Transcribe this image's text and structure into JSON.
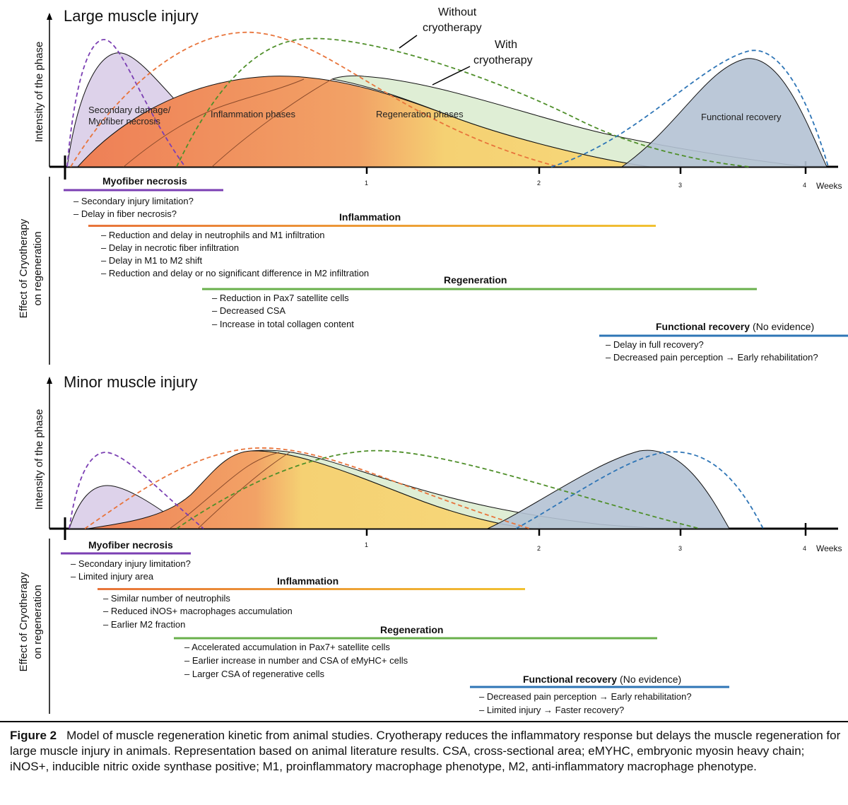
{
  "top": {
    "title": "Large muscle injury",
    "y_axis_label": "Intensity of the phase",
    "effect_label_line1": "Effect of  Cryotherapy",
    "effect_label_line2": "on regeneration",
    "annotations": {
      "without": [
        "Without",
        "cryotherapy"
      ],
      "with": [
        "With",
        "cryotherapy"
      ]
    },
    "phase_labels": {
      "necrosis": [
        "Secondary damage/",
        "Myofiber necrosis"
      ],
      "inflammation": "Inflammation phases",
      "regeneration": "Regeneration phases",
      "functional": "Functional recovery"
    },
    "ticks": [
      "1",
      "2",
      "3",
      "4"
    ],
    "weeks": "Weeks",
    "sections": {
      "necrosis": {
        "title": "Myofiber necrosis",
        "items": [
          "Secondary injury limitation?",
          "Delay in fiber necrosis?"
        ]
      },
      "inflammation": {
        "title": "Inflammation",
        "items": [
          "Reduction and delay in neutrophils and M1 infiltration",
          "Delay in necrotic fiber infiltration",
          "Delay in M1 to M2 shift",
          "Reduction and delay or no significant difference in M2 infiltration"
        ]
      },
      "regeneration": {
        "title": "Regeneration",
        "items": [
          "Reduction in Pax7 satellite cells",
          "Decreased CSA",
          "Increase in total collagen content"
        ]
      },
      "functional": {
        "title": "Functional recovery",
        "subtitle": "(No evidence)",
        "items": [
          "Delay in full recovery?",
          "Decreased pain perception → Early rehabilitation?"
        ]
      }
    }
  },
  "bottom": {
    "title": "Minor muscle injury",
    "y_axis_label": "Intensity of the phase",
    "effect_label_line1": "Effect of  Cryotherapy",
    "effect_label_line2": "on regeneration",
    "ticks": [
      "1",
      "2",
      "3",
      "4"
    ],
    "weeks": "Weeks",
    "sections": {
      "necrosis": {
        "title": "Myofiber necrosis",
        "items": [
          "Secondary injury limitation?",
          "Limited injury area"
        ]
      },
      "inflammation": {
        "title": "Inflammation",
        "items": [
          "Similar number of neutrophils",
          "Reduced iNOS+ macrophages accumulation",
          "Earlier M2 fraction"
        ]
      },
      "regeneration": {
        "title": "Regeneration",
        "items": [
          "Accelerated accumulation in Pax7+ satellite cells",
          "Earlier increase in number and CSA of eMyHC+ cells",
          "Larger CSA of regenerative cells"
        ]
      },
      "functional": {
        "title": "Functional recovery",
        "subtitle": "(No evidence)",
        "items": [
          "Decreased pain perception → Early rehabilitation?",
          "Limited injury → Faster recovery?"
        ]
      }
    }
  },
  "caption": {
    "figure_label": "Figure 2",
    "text": "Model of muscle regeneration kinetic from animal studies. Cryotherapy reduces the inflammatory response but delays the muscle regeneration for large muscle injury in animals. Representation based on animal literature results. CSA, cross-sectional area; eMYHC, embryonic myosin heavy chain; iNOS+, inducible nitric oxide synthase positive; M1, proinflammatory macrophage phenotype, M2, anti-inflammatory macrophage phenotype."
  },
  "colors": {
    "necrosis": "#7b3fb3",
    "inflammation": "#e8743b",
    "regeneration": "#6ab04c",
    "functional": "#2e75b6",
    "functional_fill": "#b4c2d4",
    "necrosis_fill": "#d9cde8",
    "regen_fill": "#dcecd0"
  }
}
